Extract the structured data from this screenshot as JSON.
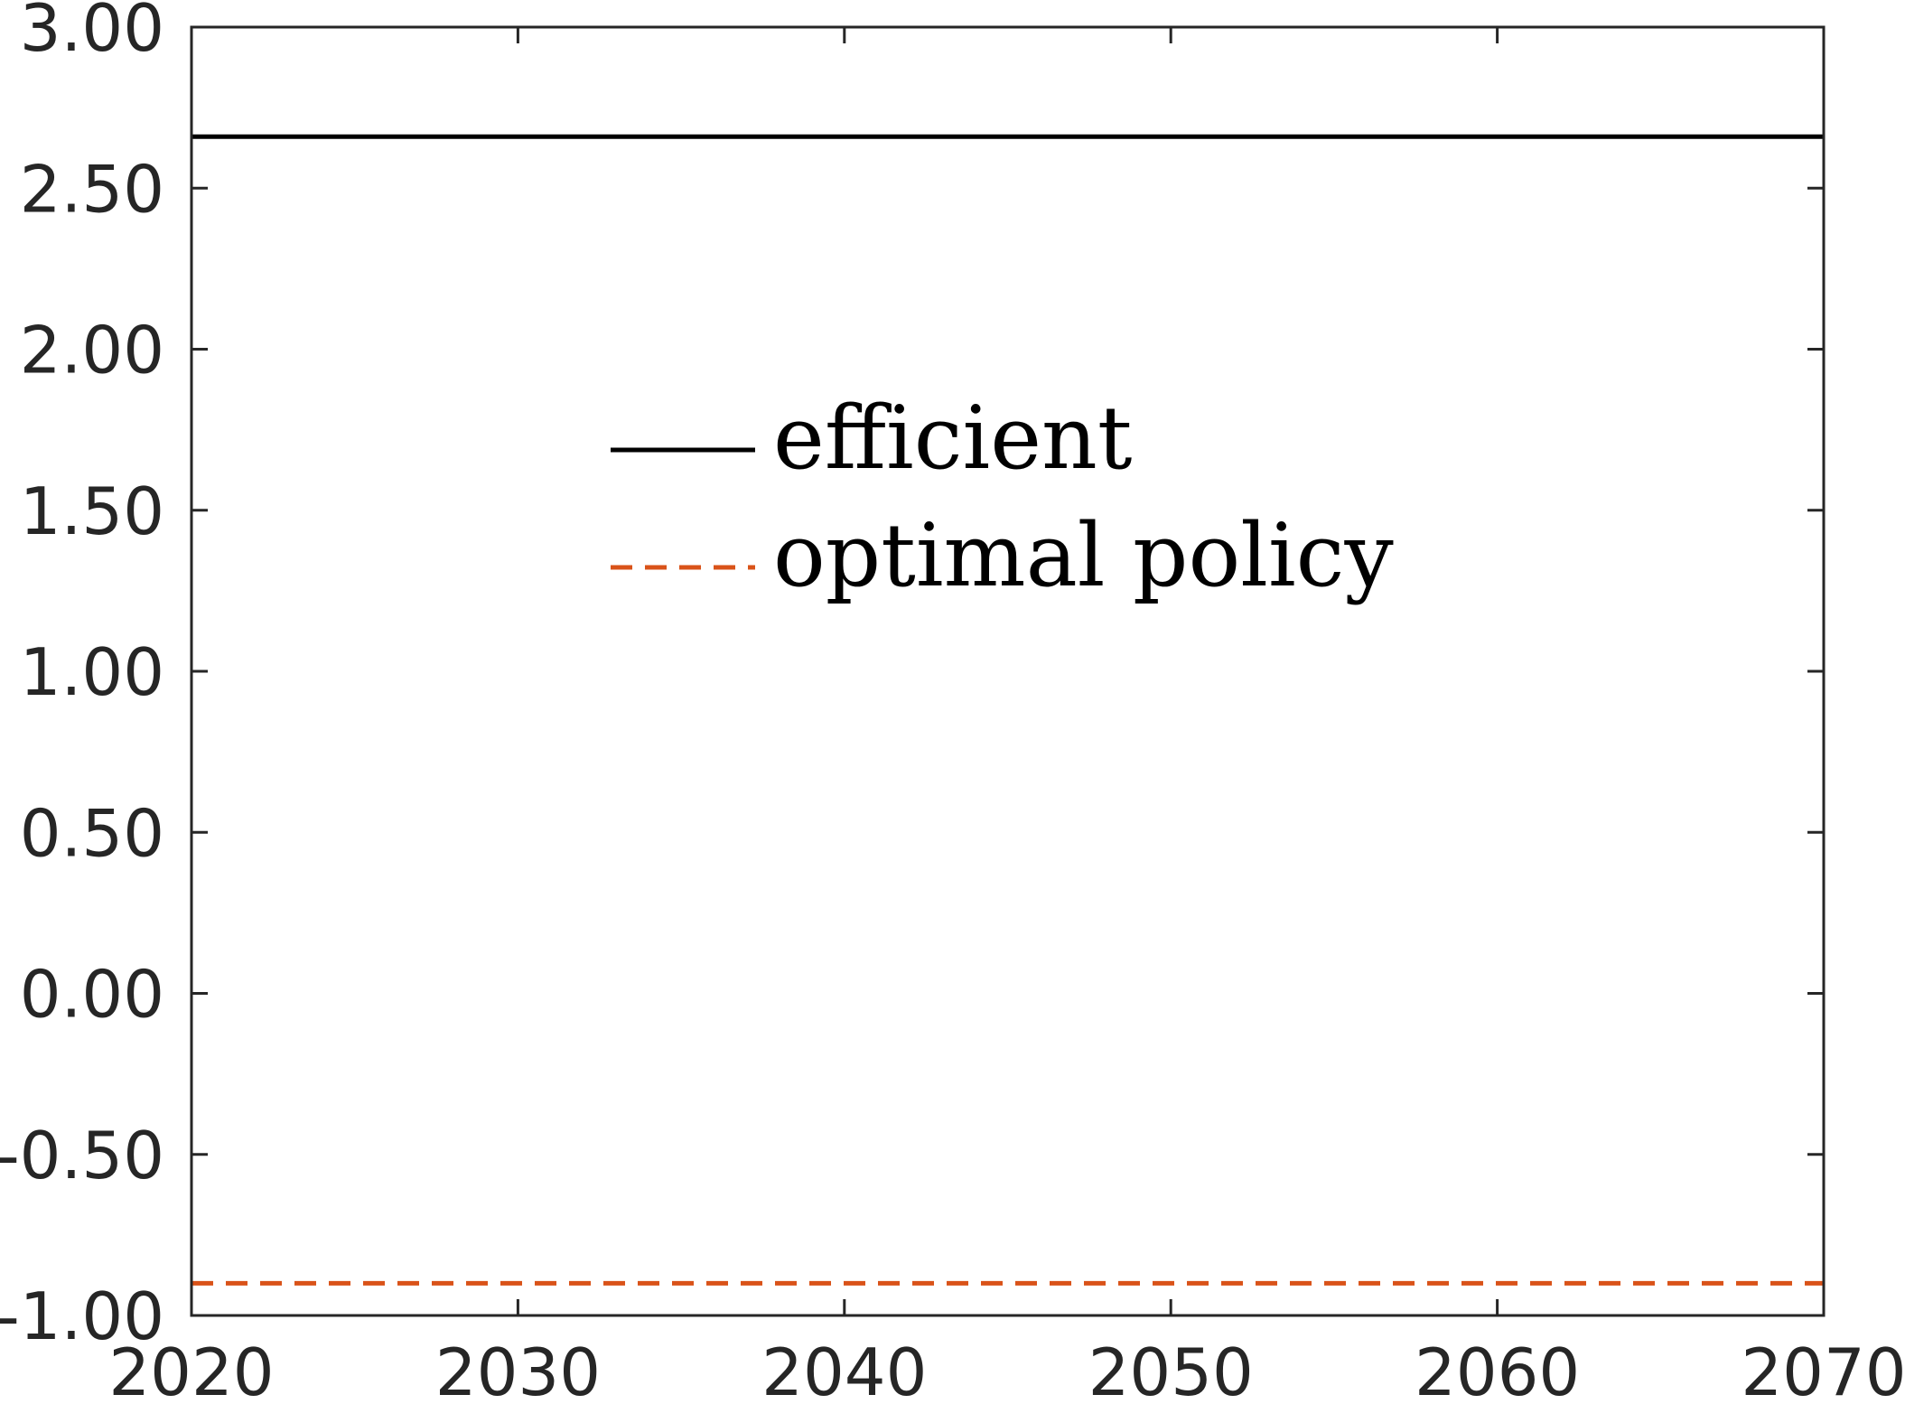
{
  "chart_data": {
    "type": "line",
    "title": "",
    "xlabel": "",
    "ylabel": "",
    "xlim": [
      2020,
      2070
    ],
    "ylim": [
      -1.0,
      3.0
    ],
    "x_ticks": [
      2020,
      2030,
      2040,
      2050,
      2060,
      2070
    ],
    "x_tick_labels": [
      "2020",
      "2030",
      "2040",
      "2050",
      "2060",
      "2070"
    ],
    "y_ticks": [
      3.0,
      2.5,
      2.0,
      1.5,
      1.0,
      0.5,
      0.0,
      -0.5,
      -1.0
    ],
    "y_tick_labels": [
      "3.00",
      "2.50",
      "2.00",
      "1.50",
      "1.00",
      "0.50",
      "0.00",
      "-0.50",
      "-1.00"
    ],
    "grid": false,
    "legend_position": "upper-center",
    "series": [
      {
        "name": "efficient",
        "color": "#000000",
        "line_style": "solid",
        "x": [
          2020,
          2070
        ],
        "y": [
          2.66,
          2.66
        ]
      },
      {
        "name": "optimal policy",
        "color": "#D95319",
        "line_style": "dashed",
        "x": [
          2020,
          2070
        ],
        "y": [
          -0.9,
          -0.9
        ]
      }
    ]
  }
}
